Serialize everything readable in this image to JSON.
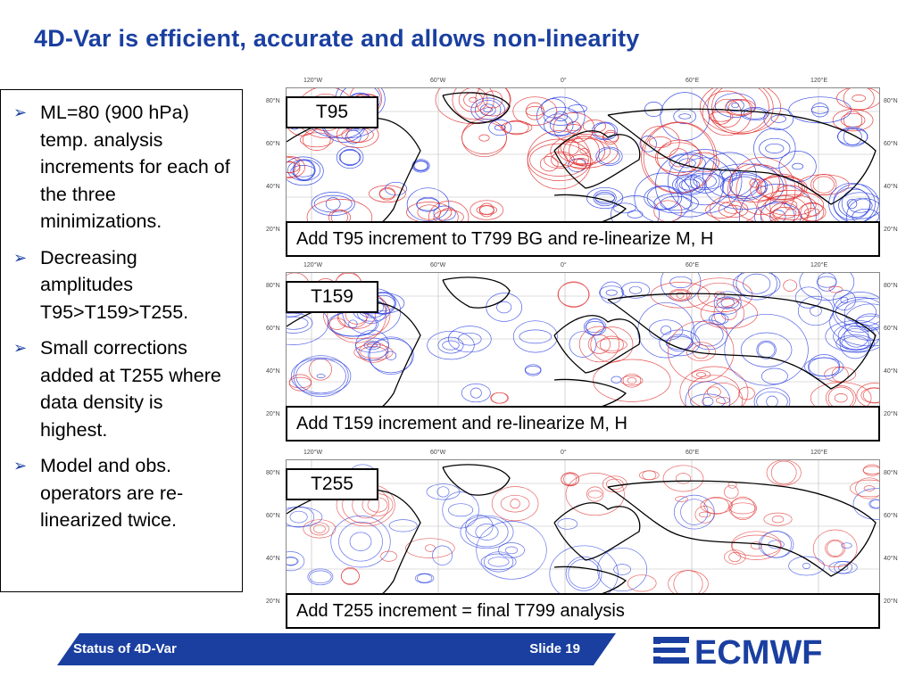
{
  "title": "4D-Var is efficient, accurate and allows non-linearity",
  "bullets": [
    "ML=80 (900 hPa) temp. analysis increments for each of the three minimizations.",
    "Decreasing amplitudes T95>T159>T255.",
    "Small corrections added at T255 where data density is highest.",
    "Model and obs. operators are re-linearized twice."
  ],
  "axes": {
    "lon": [
      "120°W",
      "60°W",
      "0°",
      "60°E",
      "120°E"
    ],
    "lat": [
      "80°N",
      "60°N",
      "40°N",
      "20°N"
    ]
  },
  "panels": [
    {
      "label": "T95",
      "caption": "Add T95 increment to T799 BG and re-linearize M, H"
    },
    {
      "label": "T159",
      "caption": "Add T159 increment and re-linearize M, H"
    },
    {
      "label": "T255",
      "caption": "Add T255 increment = final T799 analysis"
    }
  ],
  "footer": {
    "left": "Status of 4D-Var",
    "slide": "Slide 19"
  },
  "logo": {
    "text": "ECMWF",
    "color": "#1a3fa0"
  },
  "colors": {
    "accent": "#1a3fa0",
    "positive": "#e03030",
    "negative": "#2a3fe0"
  }
}
